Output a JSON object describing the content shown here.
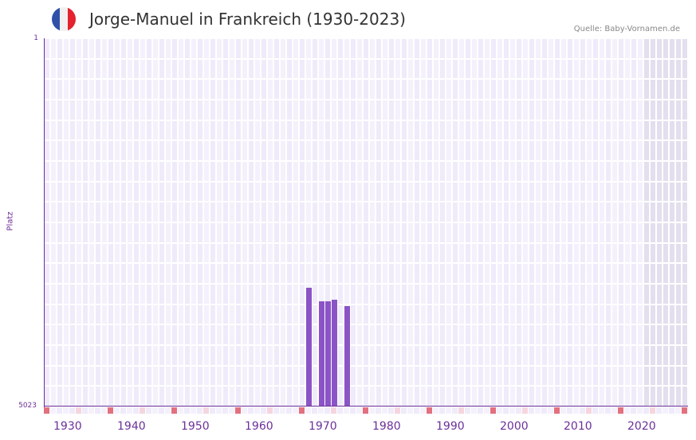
{
  "header": {
    "title": "Jorge-Manuel in Frankreich (1930-2023)",
    "source": "Quelle: Baby-Vornamen.de",
    "flag_colors": [
      "#2f52a8",
      "#f1f1f1",
      "#e3232e"
    ]
  },
  "chart_data": {
    "type": "bar",
    "title": "Jorge-Manuel in Frankreich (1930-2023)",
    "xlabel": "",
    "ylabel": "Platz",
    "y_axis_inverted": true,
    "ylim": [
      1,
      5023
    ],
    "y_ticks": [
      "1",
      "5023"
    ],
    "x_ticks": [
      "1930",
      "1940",
      "1950",
      "1960",
      "1970",
      "1980",
      "1990",
      "2000",
      "2010",
      "2020"
    ],
    "x_range": [
      1928,
      2028
    ],
    "grid": true,
    "legend": null,
    "categories": [
      "1969",
      "1971",
      "1972",
      "1973",
      "1975"
    ],
    "values": [
      3403,
      3588,
      3588,
      3566,
      3653
    ],
    "value_meaning": "Rank (Platz); lower number = more popular",
    "shaded_region": [
      2022,
      2028
    ],
    "colors": {
      "bar": "#8b54c6",
      "axis": "#6b2f9a",
      "grid_cell_a": "#efebfa",
      "grid_cell_b": "#f4f1fc",
      "shade_cell": "#e3dfee",
      "marker_decade": "#e3707e",
      "marker_half": "#f5d6df"
    }
  }
}
